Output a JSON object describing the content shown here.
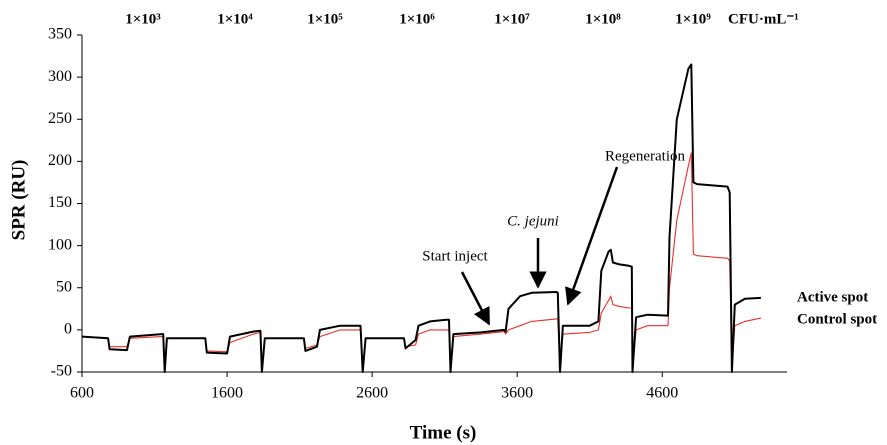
{
  "chart_data": {
    "type": "line",
    "x_label": "Time (s)",
    "y_label": "SPR (RU)",
    "concentrations": [
      "1×10³",
      "1×10⁴",
      "1×10⁵",
      "1×10⁶",
      "1×10⁷",
      "1×10⁸",
      "1×10⁹"
    ],
    "concentration_unit": "CFU·mL⁻¹",
    "annotations": [
      "Start inject",
      "C. jejuni",
      "Regeneration"
    ],
    "xlim": [
      600,
      5460
    ],
    "xticks": [
      600,
      1600,
      2600,
      3600,
      4600
    ],
    "ylim": [
      -50,
      350
    ],
    "yticks": [
      -50,
      0,
      50,
      100,
      150,
      200,
      250,
      300,
      350
    ],
    "x": [
      600,
      780,
      790,
      910,
      930,
      1150,
      1160,
      1170,
      1185,
      1450,
      1460,
      1600,
      1620,
      1780,
      1830,
      1840,
      1860,
      2130,
      2140,
      2220,
      2240,
      2380,
      2520,
      2535,
      2555,
      2820,
      2830,
      2900,
      2920,
      3000,
      3110,
      3130,
      3140,
      3160,
      3350,
      3510,
      3520,
      3540,
      3620,
      3700,
      3870,
      3880,
      3895,
      3915,
      4100,
      4160,
      4180,
      4230,
      4245,
      4260,
      4300,
      4370,
      4390,
      4395,
      4420,
      4500,
      4640,
      4650,
      4700,
      4780,
      4800,
      4815,
      4840,
      5050,
      5065,
      5080,
      5100,
      5170,
      5280
    ],
    "series": [
      {
        "name": "Active spot",
        "color": "#000000",
        "values": [
          -8,
          -10,
          -23,
          -24,
          -8,
          -5,
          -5,
          -50,
          -10,
          -10,
          -27,
          -28,
          -8,
          -2,
          -1,
          -50,
          -10,
          -10,
          -25,
          -20,
          0,
          5,
          5,
          -50,
          -10,
          -10,
          -22,
          -12,
          5,
          10,
          12,
          12,
          -50,
          -5,
          -3,
          0,
          -2,
          25,
          40,
          44,
          45,
          44,
          -50,
          5,
          5,
          10,
          70,
          93,
          95,
          80,
          78,
          76,
          75,
          -50,
          15,
          18,
          17,
          110,
          250,
          310,
          315,
          175,
          173,
          170,
          163,
          -50,
          30,
          37,
          38
        ]
      },
      {
        "name": "Control spot",
        "color": "#e8302a",
        "values": [
          -8,
          -10,
          -20,
          -20,
          -10,
          -8,
          -8,
          -45,
          -10,
          -10,
          -25,
          -26,
          -15,
          -5,
          -3,
          -45,
          -10,
          -10,
          -22,
          -18,
          -8,
          0,
          0,
          -45,
          -10,
          -10,
          -20,
          -18,
          -5,
          0,
          0,
          0,
          -45,
          -8,
          -5,
          -2,
          -5,
          0,
          5,
          10,
          13,
          13,
          -45,
          -5,
          -3,
          0,
          20,
          35,
          40,
          30,
          28,
          26,
          26,
          -45,
          0,
          5,
          5,
          50,
          130,
          195,
          210,
          90,
          88,
          85,
          82,
          -45,
          5,
          10,
          14
        ]
      }
    ]
  }
}
